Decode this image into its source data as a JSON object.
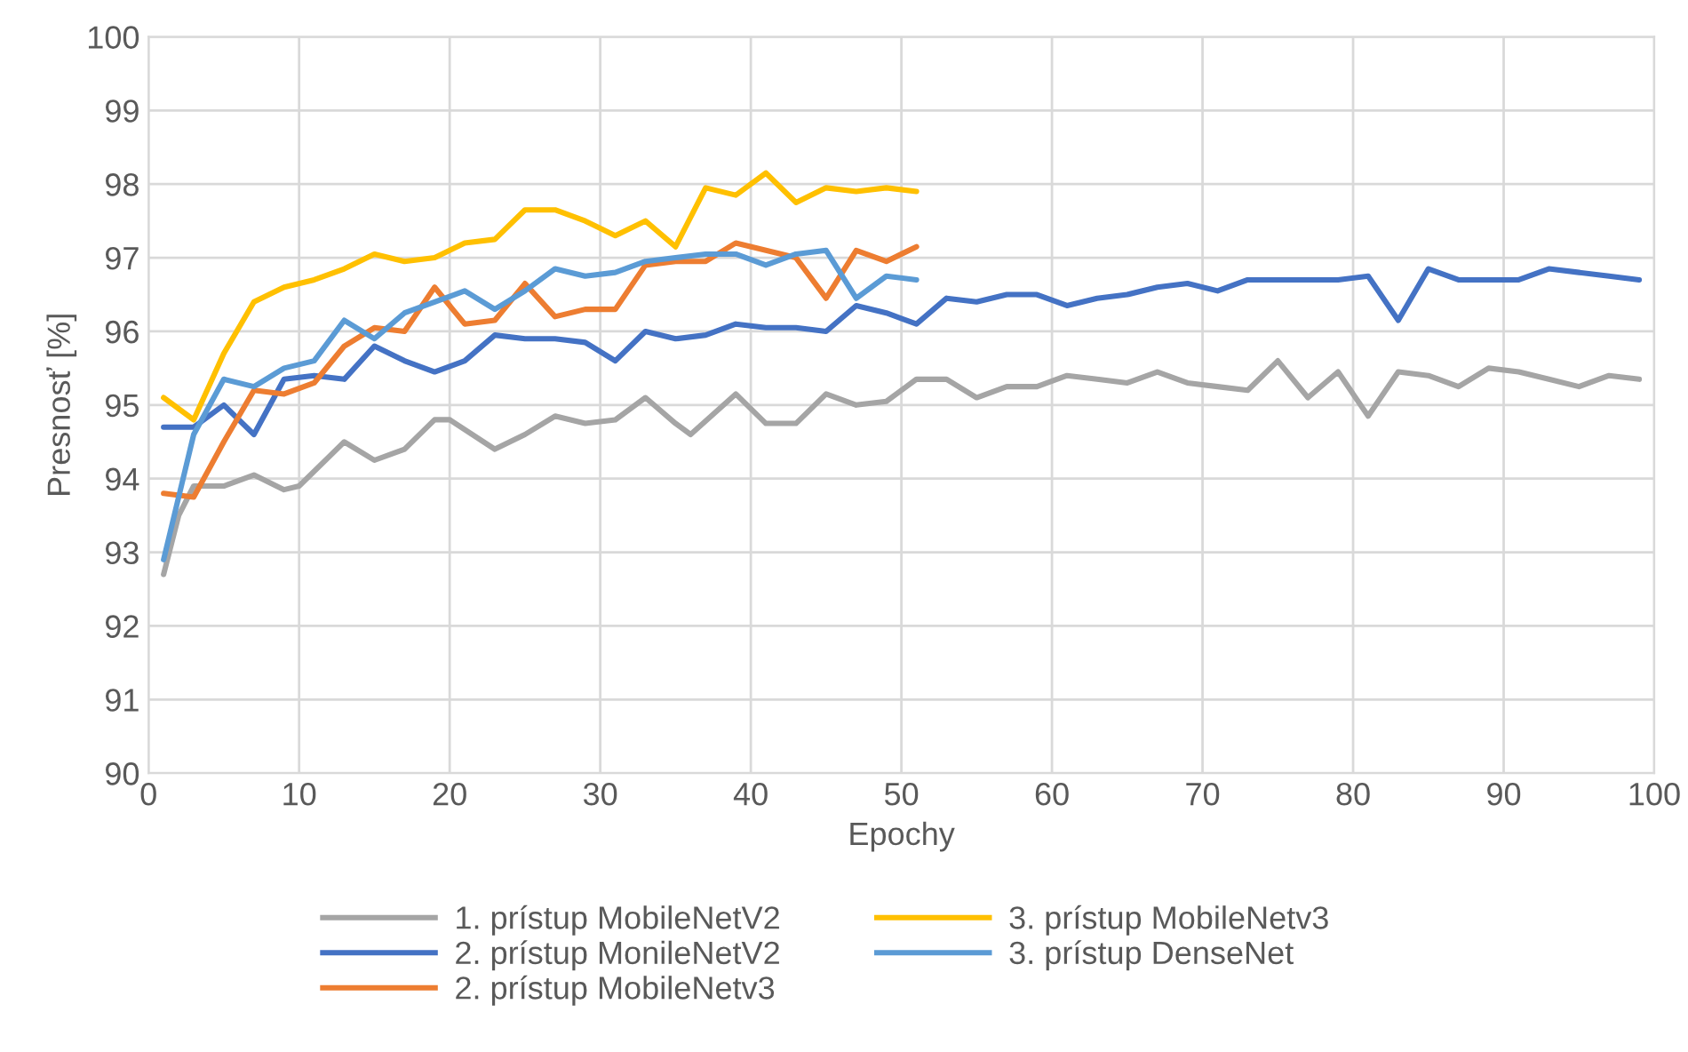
{
  "chart_data": {
    "type": "line",
    "xlabel": "Epochy",
    "ylabel": "Presnosť [%]",
    "xlim": [
      0,
      100
    ],
    "xticks": [
      0,
      10,
      20,
      30,
      40,
      50,
      60,
      70,
      80,
      90,
      100
    ],
    "ylim": [
      90,
      100
    ],
    "yticks": [
      90,
      91,
      92,
      93,
      94,
      95,
      96,
      97,
      98,
      99,
      100
    ],
    "grid": true,
    "legend": "bottom",
    "marker": "none",
    "line_style": "solid",
    "series": [
      {
        "name": "1. prístup MobileNetV2",
        "color": "#a5a5a5",
        "x": [
          1,
          2,
          3,
          5,
          7,
          9,
          10,
          13,
          15,
          17,
          19,
          20,
          23,
          25,
          27,
          29,
          31,
          33,
          35,
          36,
          39,
          41,
          43,
          45,
          47,
          49,
          51,
          53,
          55,
          57,
          59,
          61,
          63,
          65,
          67,
          69,
          71,
          73,
          75,
          77,
          79,
          81,
          83,
          85,
          87,
          89,
          91,
          93,
          95,
          97,
          99
        ],
        "values": [
          92.7,
          93.5,
          93.9,
          93.9,
          94.05,
          93.85,
          93.9,
          94.5,
          94.25,
          94.4,
          94.8,
          94.8,
          94.4,
          94.6,
          94.85,
          94.75,
          94.8,
          95.1,
          94.75,
          94.6,
          95.15,
          94.75,
          94.75,
          95.15,
          95.0,
          95.05,
          95.35,
          95.35,
          95.1,
          95.25,
          95.25,
          95.4,
          95.35,
          95.3,
          95.45,
          95.3,
          95.25,
          95.2,
          95.6,
          95.1,
          95.45,
          94.85,
          95.45,
          95.4,
          95.25,
          95.5,
          95.45,
          95.35,
          95.25,
          95.4,
          95.35
        ]
      },
      {
        "name": "2. prístup MonileNetV2",
        "color": "#4472c4",
        "x": [
          1,
          3,
          5,
          7,
          9,
          11,
          13,
          15,
          17,
          19,
          21,
          23,
          25,
          27,
          29,
          31,
          33,
          35,
          37,
          39,
          41,
          43,
          45,
          47,
          49,
          51,
          53,
          55,
          57,
          59,
          61,
          63,
          65,
          67,
          69,
          71,
          73,
          75,
          77,
          79,
          81,
          83,
          85,
          87,
          89,
          91,
          93,
          95,
          97,
          99
        ],
        "values": [
          94.7,
          94.7,
          95.0,
          94.6,
          95.35,
          95.4,
          95.35,
          95.8,
          95.6,
          95.45,
          95.6,
          95.95,
          95.9,
          95.9,
          95.85,
          95.6,
          96.0,
          95.9,
          95.95,
          96.1,
          96.05,
          96.05,
          96.0,
          96.35,
          96.25,
          96.1,
          96.45,
          96.4,
          96.5,
          96.5,
          96.35,
          96.45,
          96.5,
          96.6,
          96.65,
          96.55,
          96.7,
          96.7,
          96.7,
          96.7,
          96.75,
          96.15,
          96.85,
          96.7,
          96.7,
          96.7,
          96.85,
          96.8,
          96.75,
          96.7
        ]
      },
      {
        "name": "2. prístup MobileNetv3",
        "color": "#ed7d31",
        "x": [
          1,
          3,
          5,
          7,
          9,
          11,
          13,
          15,
          17,
          19,
          21,
          23,
          25,
          27,
          29,
          31,
          33,
          35,
          37,
          39,
          41,
          43,
          45,
          47,
          49,
          51
        ],
        "values": [
          93.8,
          93.75,
          94.5,
          95.2,
          95.15,
          95.3,
          95.8,
          96.05,
          96.0,
          96.6,
          96.1,
          96.15,
          96.65,
          96.2,
          96.3,
          96.3,
          96.9,
          96.95,
          96.95,
          97.2,
          97.1,
          97.0,
          96.45,
          97.1,
          96.95,
          97.15
        ]
      },
      {
        "name": "3. prístup MobileNetv3",
        "color": "#ffc000",
        "x": [
          1,
          3,
          5,
          7,
          9,
          11,
          13,
          15,
          17,
          19,
          21,
          23,
          25,
          27,
          29,
          31,
          33,
          35,
          37,
          39,
          41,
          43,
          45,
          47,
          49,
          51
        ],
        "values": [
          95.1,
          94.8,
          95.7,
          96.4,
          96.6,
          96.7,
          96.85,
          97.05,
          96.95,
          97.0,
          97.2,
          97.25,
          97.65,
          97.65,
          97.5,
          97.3,
          97.5,
          97.15,
          97.95,
          97.85,
          98.15,
          97.75,
          97.95,
          97.9,
          97.95,
          97.9
        ]
      },
      {
        "name": "3. prístup DenseNet",
        "color": "#5b9bd5",
        "x": [
          1,
          3,
          5,
          7,
          9,
          11,
          13,
          15,
          17,
          19,
          21,
          23,
          25,
          27,
          29,
          31,
          33,
          35,
          37,
          39,
          41,
          43,
          45,
          47,
          49,
          51
        ],
        "values": [
          92.9,
          94.6,
          95.35,
          95.25,
          95.5,
          95.6,
          96.15,
          95.9,
          96.25,
          96.4,
          96.55,
          96.3,
          96.55,
          96.85,
          96.75,
          96.8,
          96.95,
          97.0,
          97.05,
          97.05,
          96.9,
          97.05,
          97.1,
          96.45,
          96.75,
          96.7
        ]
      }
    ]
  }
}
